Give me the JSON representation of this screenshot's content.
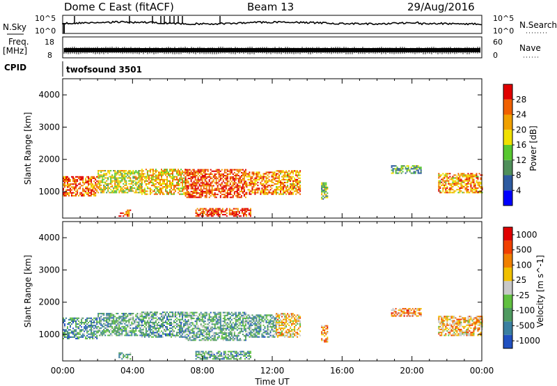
{
  "header": {
    "title": "Dome C East (fitACF)",
    "beam": "Beam 13",
    "date": "29/Aug/2016"
  },
  "nsky_panel": {
    "left_label": "N.Sky",
    "right_label": "N.Search",
    "ticks_left": [
      "10^5",
      "10^0"
    ],
    "ticks_right": [
      "10^5",
      "10^0"
    ]
  },
  "freq_panel": {
    "left_label_1": "Freq.",
    "left_label_2": "[MHz]",
    "right_label": "Nave",
    "ticks_left": [
      "18",
      "8"
    ],
    "ticks_right": [
      "60",
      "0"
    ]
  },
  "cpid_panel": {
    "left_label": "CPID",
    "text": "twofsound 3501"
  },
  "chart_data": [
    {
      "type": "heatmap",
      "title": "",
      "xlabel": "",
      "ylabel": "Slant Range [km]",
      "colorbar_label": "Power [dB]",
      "colorbar_ticks": [
        "4",
        "8",
        "12",
        "16",
        "20",
        "24",
        "28"
      ],
      "x_ticks": [
        "00:00",
        "04:00",
        "08:00",
        "12:00",
        "16:00",
        "20:00",
        "00:00"
      ],
      "y_ticks": [
        "1000",
        "2000",
        "3000",
        "4000"
      ],
      "xlim_hours": [
        0,
        24
      ],
      "ylim_km": [
        180,
        4500
      ],
      "echo_regions": [
        {
          "t0": 0.0,
          "t1": 2.0,
          "r0": 850,
          "r1": 1450,
          "level": 0.8
        },
        {
          "t0": 2.0,
          "t1": 4.5,
          "r0": 950,
          "r1": 1650,
          "level": 0.55
        },
        {
          "t0": 4.5,
          "t1": 7.0,
          "r0": 900,
          "r1": 1700,
          "level": 0.65
        },
        {
          "t0": 7.0,
          "t1": 10.5,
          "r0": 800,
          "r1": 1700,
          "level": 0.85
        },
        {
          "t0": 10.5,
          "t1": 12.2,
          "r0": 900,
          "r1": 1600,
          "level": 0.75
        },
        {
          "t0": 12.2,
          "t1": 13.6,
          "r0": 900,
          "r1": 1650,
          "level": 0.7
        },
        {
          "t0": 14.8,
          "t1": 15.2,
          "r0": 750,
          "r1": 1250,
          "level": 0.45
        },
        {
          "t0": 18.8,
          "t1": 20.5,
          "r0": 1550,
          "r1": 1800,
          "level": 0.35
        },
        {
          "t0": 21.5,
          "t1": 24.0,
          "r0": 950,
          "r1": 1550,
          "level": 0.7
        },
        {
          "t0": 3.2,
          "t1": 3.9,
          "r0": 220,
          "r1": 420,
          "level": 0.8
        },
        {
          "t0": 7.6,
          "t1": 10.8,
          "r0": 220,
          "r1": 460,
          "level": 0.9
        }
      ]
    },
    {
      "type": "heatmap",
      "title": "",
      "xlabel": "Time UT",
      "ylabel": "Slant Range [km]",
      "colorbar_label": "Velocity [m s^-1]",
      "colorbar_ticks": [
        "1000",
        "500",
        "100",
        "25",
        "-25",
        "-100",
        "-500",
        "-1000"
      ],
      "x_ticks": [
        "00:00",
        "04:00",
        "08:00",
        "12:00",
        "16:00",
        "20:00",
        "00:00"
      ],
      "y_ticks": [
        "1000",
        "2000",
        "3000",
        "4000"
      ],
      "xlim_hours": [
        0,
        24
      ],
      "ylim_km": [
        180,
        4500
      ],
      "echo_regions": [
        {
          "t0": 0.0,
          "t1": 2.0,
          "r0": 850,
          "r1": 1500,
          "level": 0.25
        },
        {
          "t0": 2.0,
          "t1": 4.5,
          "r0": 950,
          "r1": 1650,
          "level": 0.3
        },
        {
          "t0": 4.5,
          "t1": 7.0,
          "r0": 900,
          "r1": 1700,
          "level": 0.28
        },
        {
          "t0": 7.0,
          "t1": 10.5,
          "r0": 800,
          "r1": 1700,
          "level": 0.32
        },
        {
          "t0": 10.5,
          "t1": 12.2,
          "r0": 900,
          "r1": 1600,
          "level": 0.3
        },
        {
          "t0": 12.2,
          "t1": 13.6,
          "r0": 900,
          "r1": 1650,
          "level": 0.6
        },
        {
          "t0": 14.8,
          "t1": 15.2,
          "r0": 750,
          "r1": 1250,
          "level": 0.7
        },
        {
          "t0": 18.8,
          "t1": 20.5,
          "r0": 1550,
          "r1": 1800,
          "level": 0.7
        },
        {
          "t0": 21.5,
          "t1": 24.0,
          "r0": 950,
          "r1": 1550,
          "level": 0.62
        },
        {
          "t0": 3.2,
          "t1": 3.9,
          "r0": 220,
          "r1": 420,
          "level": 0.3
        },
        {
          "t0": 7.6,
          "t1": 10.8,
          "r0": 220,
          "r1": 460,
          "level": 0.3
        }
      ]
    }
  ],
  "colors": {
    "power_scale": [
      "#0000ff",
      "#2d5aa0",
      "#4f8f5a",
      "#58c830",
      "#f0e000",
      "#f0a000",
      "#f06000",
      "#e00000"
    ],
    "velocity_scale": [
      "#2050c0",
      "#3a7fa0",
      "#4f9a60",
      "#60c040",
      "#c8c8c8",
      "#f0c000",
      "#f08000",
      "#f04000",
      "#e00000"
    ]
  }
}
